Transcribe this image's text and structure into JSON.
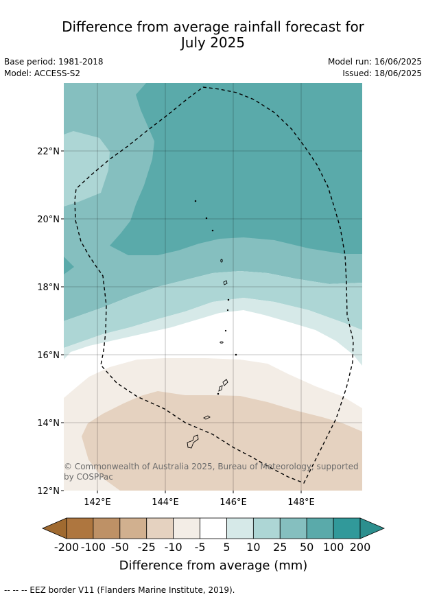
{
  "title": {
    "line1": "Difference from average rainfall forecast for",
    "line2": "July 2025"
  },
  "meta": {
    "base_period": "Base period: 1981-2018",
    "model": "Model: ACCESS-S2",
    "model_run": "Model run: 16/06/2025",
    "issued": "Issued: 18/06/2025"
  },
  "map": {
    "lat_labels": [
      "22°N",
      "20°N",
      "18°N",
      "16°N",
      "14°N",
      "12°N"
    ],
    "lon_labels": [
      "142°E",
      "144°E",
      "146°E",
      "148°E"
    ],
    "copyright_line1": "© Commonwealth of Australia 2025, Bureau of Meteorology, supported",
    "copyright_line2": "by COSPPac"
  },
  "colorbar": {
    "labels": [
      "-200",
      "-100",
      "-50",
      "-25",
      "-10",
      "-5",
      "5",
      "10",
      "25",
      "50",
      "100",
      "200"
    ],
    "colors": [
      "#ae763f",
      "#be9166",
      "#d1b08f",
      "#e5d2c0",
      "#f3ede6",
      "#ffffff",
      "#d6e9e8",
      "#add6d5",
      "#85bfbf",
      "#5aaaaa",
      "#31999a"
    ],
    "extend_low_color": "#a06a30",
    "extend_high_color": "#2c8f8e",
    "title": "Difference from average (mm)"
  },
  "footnote": "--  --  -- EEZ border V11 (Flanders Marine Institute, 2019)."
}
